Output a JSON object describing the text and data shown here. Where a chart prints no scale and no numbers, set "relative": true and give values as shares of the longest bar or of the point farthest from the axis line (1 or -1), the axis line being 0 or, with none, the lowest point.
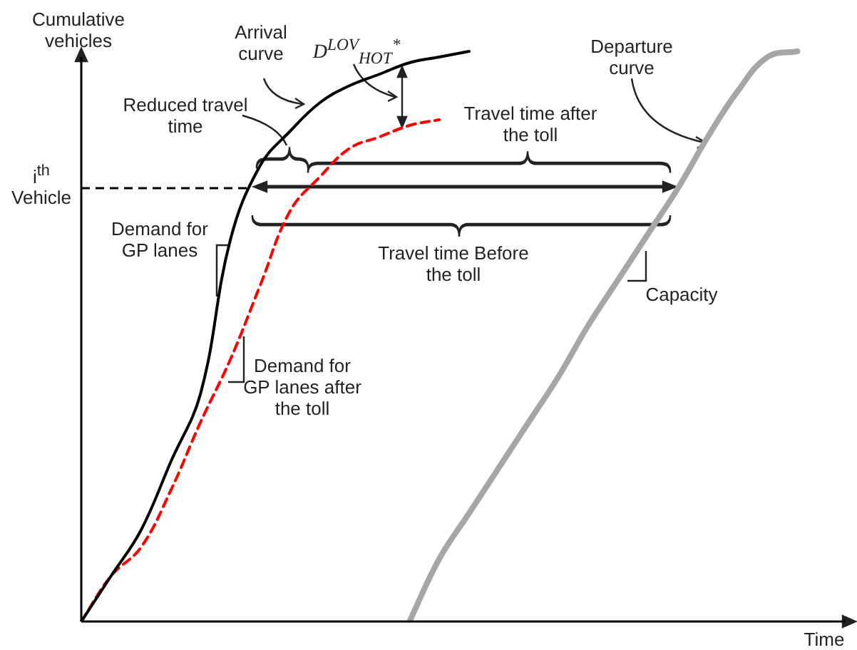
{
  "chart_data": {
    "type": "line",
    "relative": true,
    "ylabel": "Cumulative vehicles",
    "xlabel": "Time",
    "tick_labels": false,
    "legend": false,
    "grid": false,
    "marker": "none",
    "categories": [
      null,
      null,
      null,
      null,
      null,
      null,
      null,
      null,
      null,
      null,
      null,
      null,
      null,
      null,
      null,
      null,
      null,
      null,
      null,
      null,
      null,
      null,
      null,
      null,
      null,
      null,
      null
    ],
    "series": [
      {
        "color": "#000000",
        "line_style": "solid",
        "values": [
          0,
          0.08,
          0.16,
          0.28,
          0.4,
          0.67,
          0.8,
          0.86,
          0.91,
          0.94,
          0.96,
          0.98,
          0.99,
          1,
          null,
          null,
          null,
          null,
          null,
          null,
          null,
          null,
          null,
          null,
          null,
          null,
          null
        ]
      },
      {
        "color": "#ff0000",
        "line_style": "dashed",
        "values": [
          0,
          0.08,
          0.13,
          0.23,
          0.35,
          0.46,
          0.59,
          0.72,
          0.78,
          0.83,
          0.85,
          0.87,
          0.88,
          null,
          null,
          null,
          null,
          null,
          null,
          null,
          null,
          null,
          null,
          null,
          null,
          null,
          null
        ]
      },
      {
        "color": "#a6a6a6",
        "line_style": "solid",
        "values": [
          null,
          null,
          null,
          null,
          null,
          null,
          null,
          null,
          null,
          null,
          null,
          0,
          0.11,
          0.19,
          0.27,
          0.35,
          0.43,
          0.52,
          0.6,
          0.68,
          0.76,
          0.85,
          0.93,
          0.99,
          1,
          null,
          null
        ]
      }
    ],
    "ref_lines": [
      {
        "axis": "y",
        "value": 0.76,
        "label": "i$^{th}$ Vehicle",
        "line_style": "dashed",
        "color": "#000000"
      }
    ],
    "annotations": [
      "Arrival curve",
      "D$^{LOV}$$_{HOT}$$^{*}$",
      "Reduced travel time",
      "Travel time after the toll",
      "Travel time Before the toll",
      "Departure curve",
      "Capacity",
      "Demand for GP lanes",
      "Demand for GP lanes after the toll"
    ]
  }
}
